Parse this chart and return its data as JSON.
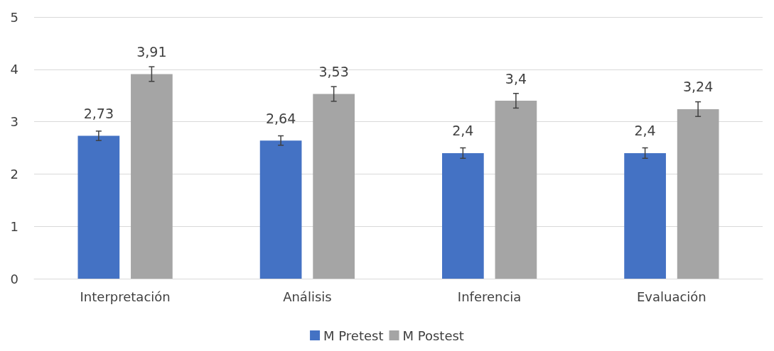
{
  "chart_data": {
    "type": "bar",
    "categories": [
      "Interpretación",
      "Análisis",
      "Inferencia",
      "Evaluación"
    ],
    "series": [
      {
        "name": "M Pretest",
        "color": "#4472c4",
        "values": [
          2.73,
          2.64,
          2.4,
          2.4
        ],
        "errors": [
          0.09,
          0.09,
          0.1,
          0.1
        ],
        "value_labels": [
          "2,73",
          "2,64",
          "2,4",
          "2,4"
        ]
      },
      {
        "name": "M Postest",
        "color": "#a5a5a5",
        "values": [
          3.91,
          3.53,
          3.4,
          3.24
        ],
        "errors": [
          0.14,
          0.14,
          0.14,
          0.14
        ],
        "value_labels": [
          "3,91",
          "3,53",
          "3,4",
          "3,24"
        ]
      }
    ],
    "ylim": [
      0,
      5
    ],
    "yticks": [
      0,
      1,
      2,
      3,
      4,
      5
    ],
    "grid": "y",
    "legend": "bottom"
  }
}
